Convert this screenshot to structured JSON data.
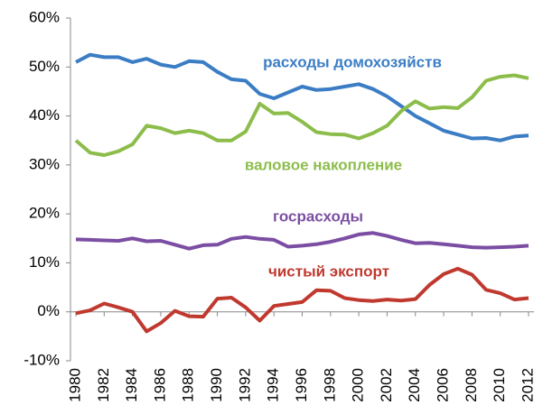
{
  "chart_data": {
    "type": "line",
    "x": [
      1980,
      1981,
      1982,
      1983,
      1984,
      1985,
      1986,
      1987,
      1988,
      1989,
      1990,
      1991,
      1992,
      1993,
      1994,
      1995,
      1996,
      1997,
      1998,
      1999,
      2000,
      2001,
      2002,
      2003,
      2004,
      2005,
      2006,
      2007,
      2008,
      2009,
      2010,
      2011,
      2012
    ],
    "series": [
      {
        "name": "расходы домохозяйств",
        "color": "#3b7dc4",
        "values": [
          51,
          52.5,
          52,
          52,
          51,
          51.7,
          50.5,
          50,
          51.2,
          51,
          49,
          47.5,
          47.2,
          44.5,
          43.6,
          44.8,
          46,
          45.3,
          45.5,
          46,
          46.5,
          45.5,
          44,
          42,
          40,
          38.5,
          37,
          36.2,
          35.4,
          35.5,
          35,
          35.8,
          36
        ]
      },
      {
        "name": "валовое накопление",
        "color": "#8cbd4b",
        "values": [
          35,
          32.5,
          32,
          32.8,
          34.2,
          38,
          37.5,
          36.5,
          37,
          36.5,
          35,
          35,
          36.8,
          42.5,
          40.5,
          40.6,
          38.8,
          36.7,
          36.3,
          36.2,
          35.4,
          36.5,
          38,
          41,
          43,
          41.5,
          41.8,
          41.6,
          43.8,
          47.2,
          48,
          48.3,
          47.7
        ]
      },
      {
        "name": "госрасходы",
        "color": "#7b4ea3",
        "values": [
          14.8,
          14.7,
          14.6,
          14.5,
          15,
          14.4,
          14.5,
          13.7,
          12.9,
          13.6,
          13.7,
          14.9,
          15.3,
          14.9,
          14.7,
          13.3,
          13.5,
          13.8,
          14.3,
          15,
          15.8,
          16.1,
          15.5,
          14.7,
          14,
          14.1,
          13.8,
          13.5,
          13.2,
          13.1,
          13.2,
          13.3,
          13.5
        ]
      },
      {
        "name": "чистый экспорт",
        "color": "#c0392f",
        "values": [
          -0.3,
          0.3,
          1.7,
          0.9,
          0,
          -4,
          -2.3,
          0.2,
          -0.9,
          -1,
          2.7,
          2.9,
          0.9,
          -1.8,
          1.2,
          1.6,
          2,
          4.4,
          4.3,
          2.8,
          2.4,
          2.2,
          2.5,
          2.3,
          2.6,
          5.5,
          7.7,
          8.8,
          7.6,
          4.5,
          3.8,
          2.5,
          2.8
        ]
      }
    ],
    "xlim": [
      1980,
      2012
    ],
    "xticks": [
      1980,
      1982,
      1984,
      1986,
      1988,
      1990,
      1992,
      1994,
      1996,
      1998,
      2000,
      2002,
      2004,
      2006,
      2008,
      2010,
      2012
    ],
    "ylim": [
      -10,
      60
    ],
    "yticks": [
      {
        "value": -10,
        "label": "-10%"
      },
      {
        "value": 0,
        "label": "0%"
      },
      {
        "value": 10,
        "label": "10%"
      },
      {
        "value": 20,
        "label": "20%"
      },
      {
        "value": 30,
        "label": "30%"
      },
      {
        "value": 40,
        "label": "40%"
      },
      {
        "value": 50,
        "label": "50%"
      },
      {
        "value": 60,
        "label": "60%"
      }
    ],
    "grid": false
  }
}
